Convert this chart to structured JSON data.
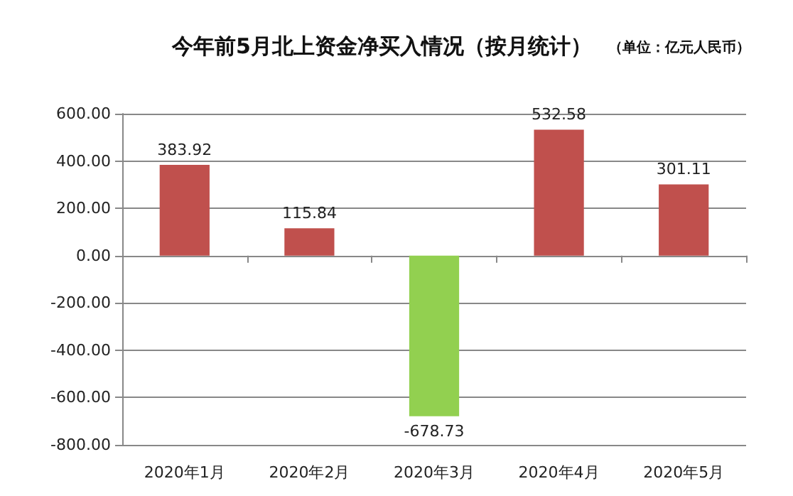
{
  "chart_data": {
    "type": "bar",
    "title": "今年前5月北上资金净买入情况（按月统计）",
    "subtitle": "（单位：亿元人民币）",
    "categories": [
      "2020年1月",
      "2020年2月",
      "2020年3月",
      "2020年4月",
      "2020年5月"
    ],
    "values": [
      383.92,
      115.84,
      -678.73,
      532.58,
      301.11
    ],
    "colors": [
      "#c0504d",
      "#c0504d",
      "#92d050",
      "#c0504d",
      "#c0504d"
    ],
    "data_labels": true,
    "ylim": [
      -800,
      600
    ],
    "yticks": [
      {
        "value": -800,
        "label": "-800.00"
      },
      {
        "value": -600,
        "label": "-600.00"
      },
      {
        "value": -400,
        "label": "-400.00"
      },
      {
        "value": -200,
        "label": "-200.00"
      },
      {
        "value": 0,
        "label": "0.00"
      },
      {
        "value": 200,
        "label": "200.00"
      },
      {
        "value": 400,
        "label": "400.00"
      },
      {
        "value": 600,
        "label": "600.00"
      }
    ],
    "grid": "y"
  }
}
